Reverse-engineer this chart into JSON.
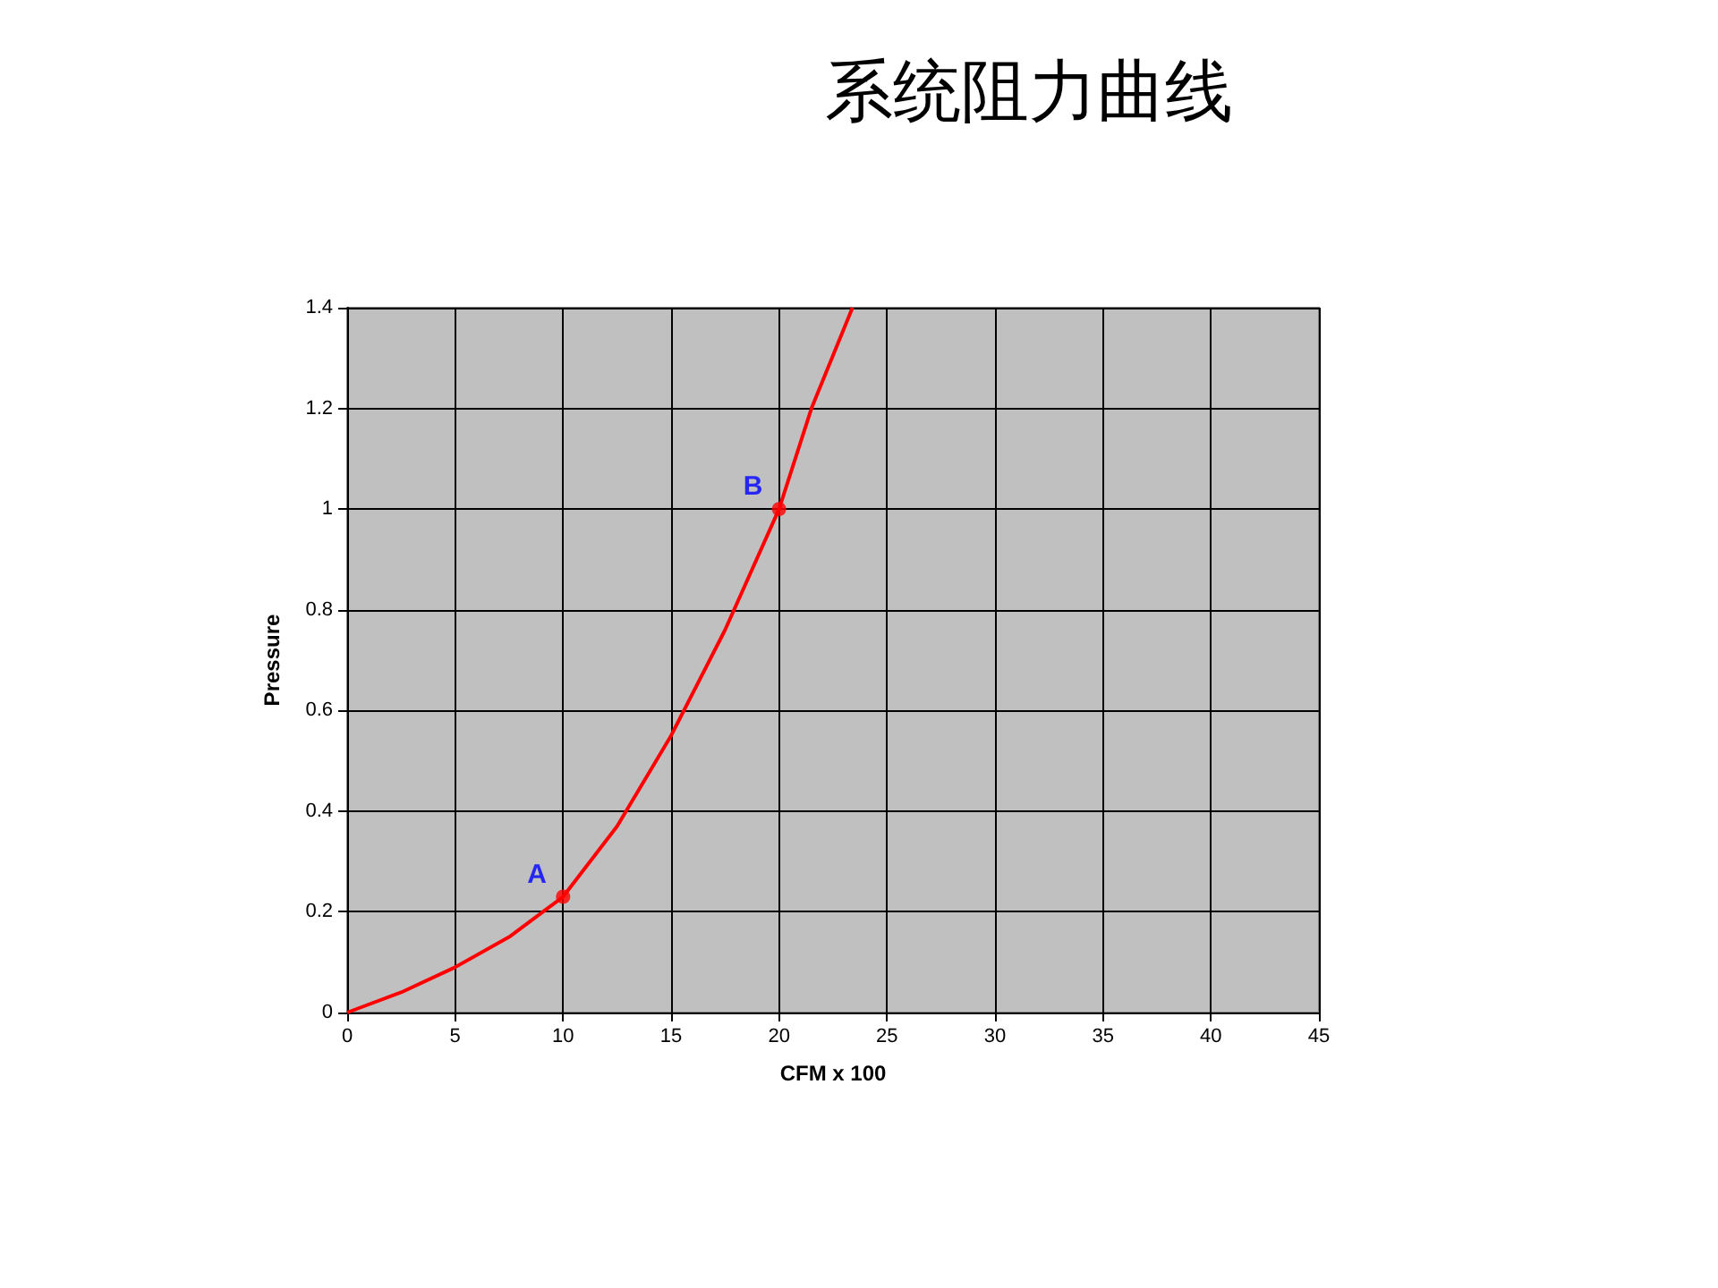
{
  "chart_data": {
    "type": "line",
    "title": "系统阻力曲线",
    "xlabel": "CFM x 100",
    "ylabel": "Pressure",
    "series": [
      {
        "color": "#ff0000",
        "marker": "none",
        "x": [
          0,
          2.5,
          5,
          7.5,
          10,
          12.5,
          15,
          17.5,
          20,
          21.5,
          23.4
        ],
        "values": [
          0,
          0.04,
          0.09,
          0.15,
          0.23,
          0.37,
          0.55,
          0.76,
          1.0,
          1.2,
          1.4
        ]
      },
      {
        "type": "scatter",
        "color": "#ff0000",
        "marker": "circle",
        "x": [
          10,
          20
        ],
        "values": [
          0.23,
          1.0
        ]
      }
    ],
    "annotations": [
      {
        "text": "A",
        "x": 10,
        "y": 0.23
      },
      {
        "text": "B",
        "x": 20,
        "y": 1.0
      }
    ],
    "xlim": [
      0,
      45
    ],
    "xticks": [
      0,
      5,
      10,
      15,
      20,
      25,
      30,
      35,
      40,
      45
    ],
    "ylim": [
      0,
      1.4
    ],
    "yticks": [
      0,
      0.2,
      0.4,
      0.6,
      0.8,
      1,
      1.2,
      1.4
    ],
    "grid": true,
    "line_style": "solid"
  }
}
